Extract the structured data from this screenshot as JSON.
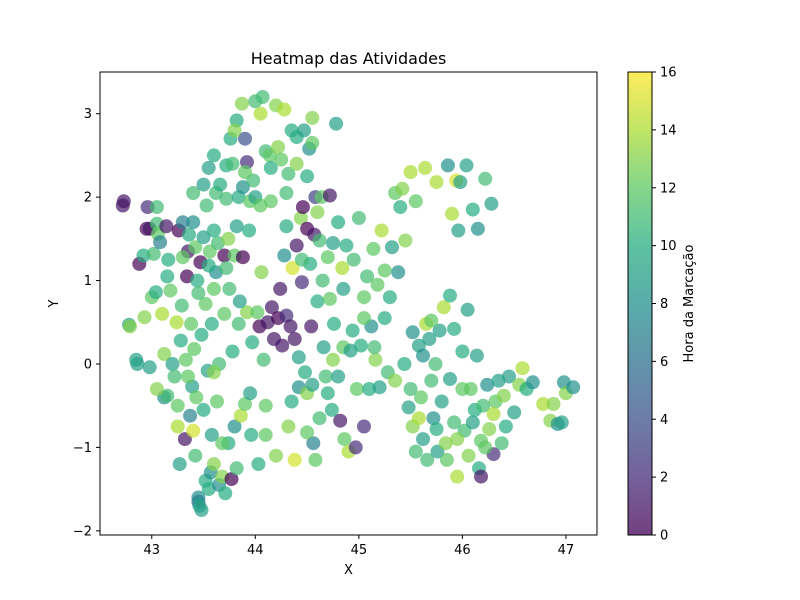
{
  "chart_data": {
    "type": "scatter",
    "title": "Heatmap das Atividades",
    "xlabel": "X",
    "ylabel": "Y",
    "xlim": [
      42.5,
      47.3
    ],
    "ylim": [
      -2.05,
      3.5
    ],
    "xticks": [
      43,
      44,
      45,
      46,
      47
    ],
    "yticks": [
      -2,
      -1,
      0,
      1,
      2,
      3
    ],
    "colorbar": {
      "label": "Hora da Marcação",
      "range": [
        0,
        16
      ],
      "ticks": [
        0,
        2,
        4,
        6,
        8,
        10,
        12,
        14,
        16
      ],
      "colormap": "viridis"
    },
    "marker_alpha": 0.7,
    "points": [
      [
        42.72,
        1.9,
        1
      ],
      [
        42.73,
        1.95,
        1
      ],
      [
        42.78,
        0.47,
        9
      ],
      [
        42.79,
        0.45,
        13
      ],
      [
        42.85,
        0.05,
        9
      ],
      [
        42.86,
        0.0,
        9
      ],
      [
        42.88,
        1.2,
        0
      ],
      [
        42.92,
        1.3,
        10
      ],
      [
        42.93,
        0.56,
        13
      ],
      [
        42.95,
        1.62,
        0
      ],
      [
        42.96,
        1.88,
        2
      ],
      [
        42.98,
        1.62,
        1
      ],
      [
        42.98,
        -0.04,
        9
      ],
      [
        43.0,
        0.8,
        12
      ],
      [
        43.02,
        1.32,
        11
      ],
      [
        43.04,
        0.86,
        10
      ],
      [
        43.05,
        1.88,
        11
      ],
      [
        43.05,
        1.68,
        11
      ],
      [
        43.06,
        1.56,
        12
      ],
      [
        43.08,
        1.46,
        7
      ],
      [
        43.1,
        0.6,
        14
      ],
      [
        43.12,
        0.12,
        13
      ],
      [
        43.12,
        -0.4,
        8
      ],
      [
        43.14,
        1.65,
        1
      ],
      [
        43.15,
        -0.38,
        11
      ],
      [
        43.16,
        1.25,
        10
      ],
      [
        43.18,
        0.88,
        12
      ],
      [
        43.2,
        0.0,
        9
      ],
      [
        43.22,
        -0.15,
        11
      ],
      [
        43.24,
        0.5,
        14
      ],
      [
        43.25,
        -0.5,
        12
      ],
      [
        43.26,
        1.6,
        0
      ],
      [
        43.27,
        -1.2,
        9
      ],
      [
        43.28,
        0.28,
        10
      ],
      [
        43.29,
        0.7,
        11
      ],
      [
        43.3,
        1.7,
        7
      ],
      [
        43.32,
        -0.9,
        1
      ],
      [
        43.33,
        0.05,
        12
      ],
      [
        43.34,
        1.05,
        0
      ],
      [
        43.35,
        1.35,
        1
      ],
      [
        43.36,
        1.55,
        10
      ],
      [
        43.37,
        -0.62,
        7
      ],
      [
        43.38,
        0.48,
        12
      ],
      [
        43.39,
        -0.27,
        9
      ],
      [
        43.4,
        1.7,
        8
      ],
      [
        43.4,
        -0.8,
        15
      ],
      [
        43.41,
        0.18,
        12
      ],
      [
        43.42,
        -1.1,
        11
      ],
      [
        43.42,
        1.4,
        12
      ],
      [
        43.43,
        -0.4,
        12
      ],
      [
        43.44,
        1.0,
        10
      ],
      [
        43.45,
        -1.65,
        5
      ],
      [
        43.45,
        -1.6,
        8
      ],
      [
        43.46,
        -1.7,
        9
      ],
      [
        43.47,
        1.22,
        0
      ],
      [
        43.48,
        0.35,
        10
      ],
      [
        43.48,
        -1.75,
        9
      ],
      [
        43.5,
        2.15,
        9
      ],
      [
        43.5,
        1.52,
        9
      ],
      [
        43.52,
        -1.4,
        10
      ],
      [
        43.52,
        0.72,
        12
      ],
      [
        43.53,
        1.9,
        11
      ],
      [
        43.54,
        -0.08,
        9
      ],
      [
        43.55,
        -1.5,
        10
      ],
      [
        43.55,
        2.35,
        9
      ],
      [
        43.56,
        1.35,
        12
      ],
      [
        43.57,
        -1.3,
        8
      ],
      [
        43.58,
        0.48,
        10
      ],
      [
        43.58,
        -0.85,
        9
      ],
      [
        43.6,
        1.6,
        10
      ],
      [
        43.6,
        -1.2,
        13
      ],
      [
        43.62,
        2.05,
        11
      ],
      [
        43.62,
        1.1,
        8
      ],
      [
        43.63,
        -0.45,
        12
      ],
      [
        43.64,
        1.45,
        11
      ],
      [
        43.65,
        -1.45,
        8
      ],
      [
        43.65,
        0.0,
        11
      ],
      [
        43.66,
        2.15,
        10
      ],
      [
        43.68,
        -1.35,
        13
      ],
      [
        43.7,
        1.3,
        0
      ],
      [
        43.7,
        0.6,
        12
      ],
      [
        43.71,
        -1.55,
        10
      ],
      [
        43.72,
        2.38,
        10
      ],
      [
        43.72,
        1.98,
        11
      ],
      [
        43.74,
        -0.95,
        10
      ],
      [
        43.74,
        1.5,
        13
      ],
      [
        43.75,
        0.9,
        11
      ],
      [
        43.76,
        2.7,
        10
      ],
      [
        43.77,
        -1.38,
        0
      ],
      [
        43.78,
        2.4,
        11
      ],
      [
        43.78,
        0.15,
        10
      ],
      [
        43.8,
        1.3,
        12
      ],
      [
        43.8,
        -0.75,
        8
      ],
      [
        43.82,
        2.92,
        10
      ],
      [
        43.82,
        1.65,
        9
      ],
      [
        43.84,
        2.0,
        10
      ],
      [
        43.84,
        0.48,
        11
      ],
      [
        43.86,
        -0.62,
        14
      ],
      [
        43.87,
        3.12,
        13
      ],
      [
        43.88,
        2.12,
        8
      ],
      [
        43.88,
        1.28,
        0
      ],
      [
        43.9,
        2.7,
        4
      ],
      [
        43.9,
        -0.48,
        12
      ],
      [
        43.92,
        2.42,
        2
      ],
      [
        43.92,
        0.62,
        13
      ],
      [
        43.94,
        1.6,
        10
      ],
      [
        43.95,
        1.95,
        12
      ],
      [
        43.96,
        -0.85,
        10
      ],
      [
        43.97,
        0.26,
        10
      ],
      [
        43.98,
        2.2,
        11
      ],
      [
        44.0,
        3.15,
        11
      ],
      [
        44.0,
        2.0,
        9
      ],
      [
        44.02,
        0.62,
        12
      ],
      [
        44.03,
        -1.2,
        10
      ],
      [
        44.04,
        0.45,
        0
      ],
      [
        44.05,
        3.0,
        14
      ],
      [
        44.06,
        1.1,
        13
      ],
      [
        44.07,
        3.2,
        11
      ],
      [
        44.08,
        0.05,
        11
      ],
      [
        44.1,
        2.55,
        11
      ],
      [
        44.1,
        -0.85,
        12
      ],
      [
        44.12,
        0.5,
        1
      ],
      [
        44.14,
        2.5,
        12
      ],
      [
        44.15,
        1.95,
        12
      ],
      [
        44.16,
        0.68,
        1
      ],
      [
        44.18,
        0.3,
        1
      ],
      [
        44.2,
        3.1,
        13
      ],
      [
        44.22,
        2.6,
        13
      ],
      [
        44.22,
        0.55,
        0
      ],
      [
        44.24,
        0.9,
        1
      ],
      [
        44.26,
        0.22,
        1
      ],
      [
        44.28,
        1.3,
        8
      ],
      [
        44.28,
        3.05,
        14
      ],
      [
        44.3,
        0.58,
        2
      ],
      [
        44.32,
        2.28,
        11
      ],
      [
        44.32,
        -0.75,
        13
      ],
      [
        44.34,
        0.45,
        1
      ],
      [
        44.35,
        2.8,
        10
      ],
      [
        44.36,
        1.15,
        15
      ],
      [
        44.38,
        0.3,
        1
      ],
      [
        44.38,
        -1.15,
        15
      ],
      [
        44.4,
        1.42,
        1
      ],
      [
        44.4,
        2.72,
        10
      ],
      [
        44.42,
        0.08,
        9
      ],
      [
        44.42,
        -0.28,
        8
      ],
      [
        44.44,
        1.75,
        13
      ],
      [
        44.45,
        0.98,
        2
      ],
      [
        44.46,
        1.88,
        0
      ],
      [
        44.47,
        2.8,
        9
      ],
      [
        44.48,
        -0.1,
        10
      ],
      [
        44.5,
        1.62,
        0
      ],
      [
        44.5,
        -0.35,
        13
      ],
      [
        44.52,
        2.58,
        8
      ],
      [
        44.53,
        1.2,
        10
      ],
      [
        44.54,
        0.45,
        1
      ],
      [
        44.55,
        2.95,
        13
      ],
      [
        44.56,
        -0.95,
        7
      ],
      [
        44.57,
        1.55,
        1
      ],
      [
        44.58,
        2.0,
        3
      ],
      [
        44.58,
        -1.15,
        12
      ],
      [
        44.6,
        0.75,
        10
      ],
      [
        44.62,
        1.48,
        11
      ],
      [
        44.62,
        -0.65,
        11
      ],
      [
        44.64,
        2.0,
        12
      ],
      [
        44.65,
        1.0,
        11
      ],
      [
        44.66,
        0.2,
        9
      ],
      [
        44.68,
        -0.15,
        11
      ],
      [
        44.7,
        1.28,
        12
      ],
      [
        44.72,
        2.02,
        1
      ],
      [
        44.72,
        0.78,
        12
      ],
      [
        44.74,
        -0.55,
        10
      ],
      [
        44.75,
        1.45,
        9
      ],
      [
        44.76,
        0.48,
        10
      ],
      [
        44.78,
        2.88,
        9
      ],
      [
        44.8,
        -0.15,
        9
      ],
      [
        44.8,
        1.7,
        10
      ],
      [
        44.82,
        -0.68,
        1
      ],
      [
        44.84,
        1.15,
        14
      ],
      [
        44.85,
        0.2,
        12
      ],
      [
        44.86,
        -0.9,
        12
      ],
      [
        44.88,
        1.42,
        10
      ],
      [
        44.9,
        -1.05,
        14
      ],
      [
        44.92,
        0.16,
        9
      ],
      [
        44.94,
        0.4,
        10
      ],
      [
        44.95,
        1.25,
        11
      ],
      [
        44.97,
        -1.0,
        2
      ],
      [
        44.98,
        -0.3,
        12
      ],
      [
        45.0,
        1.75,
        11
      ],
      [
        45.02,
        0.22,
        10
      ],
      [
        45.05,
        0.8,
        12
      ],
      [
        45.05,
        -0.75,
        2
      ],
      [
        45.08,
        1.05,
        11
      ],
      [
        45.1,
        -0.3,
        10
      ],
      [
        45.12,
        0.45,
        8
      ],
      [
        45.14,
        1.38,
        12
      ],
      [
        45.16,
        0.05,
        13
      ],
      [
        45.18,
        0.95,
        12
      ],
      [
        45.2,
        -0.28,
        9
      ],
      [
        45.22,
        1.6,
        14
      ],
      [
        45.25,
        1.12,
        12
      ],
      [
        45.28,
        -0.1,
        11
      ],
      [
        45.3,
        0.8,
        10
      ],
      [
        45.32,
        1.4,
        9
      ],
      [
        45.35,
        2.05,
        12
      ],
      [
        45.38,
        1.1,
        8
      ],
      [
        45.4,
        1.88,
        10
      ],
      [
        45.42,
        2.1,
        13
      ],
      [
        45.44,
        0.0,
        10
      ],
      [
        45.45,
        1.48,
        13
      ],
      [
        45.48,
        -0.52,
        9
      ],
      [
        45.5,
        2.3,
        14
      ],
      [
        45.52,
        0.38,
        8
      ],
      [
        45.52,
        -0.75,
        13
      ],
      [
        45.55,
        1.95,
        12
      ],
      [
        45.55,
        -1.05,
        11
      ],
      [
        45.58,
        0.22,
        9
      ],
      [
        45.6,
        -0.4,
        12
      ],
      [
        45.62,
        0.1,
        8
      ],
      [
        45.62,
        -0.9,
        9
      ],
      [
        45.64,
        2.35,
        14
      ],
      [
        45.65,
        0.48,
        14
      ],
      [
        45.66,
        -1.15,
        11
      ],
      [
        45.68,
        0.3,
        9
      ],
      [
        45.7,
        -0.2,
        11
      ],
      [
        45.72,
        -0.65,
        8
      ],
      [
        45.74,
        0.0,
        11
      ],
      [
        45.75,
        2.18,
        14
      ],
      [
        45.76,
        -1.05,
        9
      ],
      [
        45.78,
        0.4,
        9
      ],
      [
        45.8,
        -0.45,
        9
      ],
      [
        45.82,
        0.68,
        14
      ],
      [
        45.84,
        -0.95,
        13
      ],
      [
        45.86,
        2.38,
        8
      ],
      [
        45.88,
        0.82,
        10
      ],
      [
        45.88,
        -0.18,
        9
      ],
      [
        45.9,
        1.8,
        14
      ],
      [
        45.92,
        -0.7,
        11
      ],
      [
        45.92,
        0.42,
        10
      ],
      [
        45.94,
        2.2,
        15
      ],
      [
        45.95,
        -1.35,
        14
      ],
      [
        45.96,
        1.6,
        9
      ],
      [
        45.98,
        2.18,
        9
      ],
      [
        46.0,
        0.15,
        10
      ],
      [
        46.02,
        -0.8,
        11
      ],
      [
        46.04,
        2.38,
        9
      ],
      [
        46.05,
        0.65,
        9
      ],
      [
        46.06,
        -1.1,
        13
      ],
      [
        46.08,
        -0.3,
        12
      ],
      [
        46.1,
        1.85,
        10
      ],
      [
        46.12,
        -0.55,
        10
      ],
      [
        46.14,
        0.1,
        9
      ],
      [
        46.15,
        1.62,
        8
      ],
      [
        46.16,
        -1.25,
        10
      ],
      [
        46.18,
        -1.35,
        1
      ],
      [
        46.18,
        -0.92,
        12
      ],
      [
        46.2,
        -0.5,
        11
      ],
      [
        46.22,
        2.22,
        11
      ],
      [
        46.24,
        -0.25,
        8
      ],
      [
        46.26,
        -0.78,
        13
      ],
      [
        46.28,
        1.92,
        9
      ],
      [
        46.3,
        -1.08,
        2
      ],
      [
        46.32,
        -0.45,
        12
      ],
      [
        46.35,
        -0.2,
        9
      ],
      [
        46.38,
        -0.95,
        11
      ],
      [
        46.4,
        -0.38,
        13
      ],
      [
        46.45,
        -0.15,
        9
      ],
      [
        46.5,
        -0.58,
        9
      ],
      [
        46.55,
        -0.25,
        13
      ],
      [
        46.58,
        -0.05,
        14
      ],
      [
        46.62,
        -0.3,
        10
      ],
      [
        46.68,
        -0.22,
        8
      ],
      [
        46.78,
        -0.48,
        14
      ],
      [
        46.85,
        -0.68,
        13
      ],
      [
        46.88,
        -0.48,
        13
      ],
      [
        46.92,
        -0.72,
        8
      ],
      [
        46.96,
        -0.7,
        9
      ],
      [
        46.98,
        -0.22,
        8
      ],
      [
        47.0,
        -0.35,
        13
      ],
      [
        47.07,
        -0.28,
        8
      ],
      [
        43.15,
        1.05,
        10
      ],
      [
        43.3,
        1.28,
        12
      ],
      [
        43.45,
        0.85,
        11
      ],
      [
        43.55,
        1.18,
        10
      ],
      [
        43.6,
        0.9,
        12
      ],
      [
        43.72,
        1.15,
        11
      ],
      [
        43.85,
        0.75,
        9
      ],
      [
        44.05,
        1.9,
        12
      ],
      [
        44.15,
        2.35,
        10
      ],
      [
        44.25,
        2.45,
        12
      ],
      [
        44.3,
        1.65,
        10
      ],
      [
        44.45,
        1.25,
        11
      ],
      [
        44.6,
        1.82,
        13
      ],
      [
        44.7,
        -0.35,
        10
      ],
      [
        44.75,
        0.05,
        13
      ],
      [
        44.85,
        0.9,
        9
      ],
      [
        45.05,
        0.55,
        12
      ],
      [
        45.15,
        0.2,
        11
      ],
      [
        45.25,
        0.55,
        10
      ],
      [
        45.35,
        -0.2,
        13
      ],
      [
        45.5,
        -0.3,
        11
      ],
      [
        45.58,
        -0.65,
        14
      ],
      [
        45.7,
        0.52,
        12
      ],
      [
        45.75,
        -0.78,
        10
      ],
      [
        45.85,
        -1.15,
        12
      ],
      [
        45.95,
        -0.9,
        13
      ],
      [
        46.0,
        -0.3,
        12
      ],
      [
        46.1,
        -0.7,
        9
      ],
      [
        46.22,
        -1.0,
        12
      ],
      [
        46.3,
        -0.6,
        14
      ],
      [
        46.42,
        -0.75,
        10
      ],
      [
        43.05,
        -0.3,
        13
      ],
      [
        43.25,
        -0.75,
        14
      ],
      [
        43.35,
        -0.15,
        12
      ],
      [
        43.5,
        -0.55,
        10
      ],
      [
        43.6,
        -0.1,
        13
      ],
      [
        43.68,
        -0.95,
        12
      ],
      [
        43.82,
        -1.25,
        11
      ],
      [
        43.95,
        -0.35,
        9
      ],
      [
        44.1,
        -0.5,
        12
      ],
      [
        44.2,
        -1.1,
        13
      ],
      [
        44.35,
        -0.45,
        10
      ],
      [
        44.5,
        -0.82,
        12
      ],
      [
        44.55,
        -0.25,
        9
      ],
      [
        43.4,
        2.05,
        11
      ],
      [
        43.6,
        2.5,
        10
      ],
      [
        43.8,
        2.8,
        13
      ],
      [
        43.9,
        2.3,
        12
      ],
      [
        44.3,
        2.05,
        11
      ],
      [
        44.4,
        2.4,
        13
      ],
      [
        44.5,
        2.25,
        10
      ],
      [
        44.55,
        2.65,
        12
      ]
    ]
  }
}
